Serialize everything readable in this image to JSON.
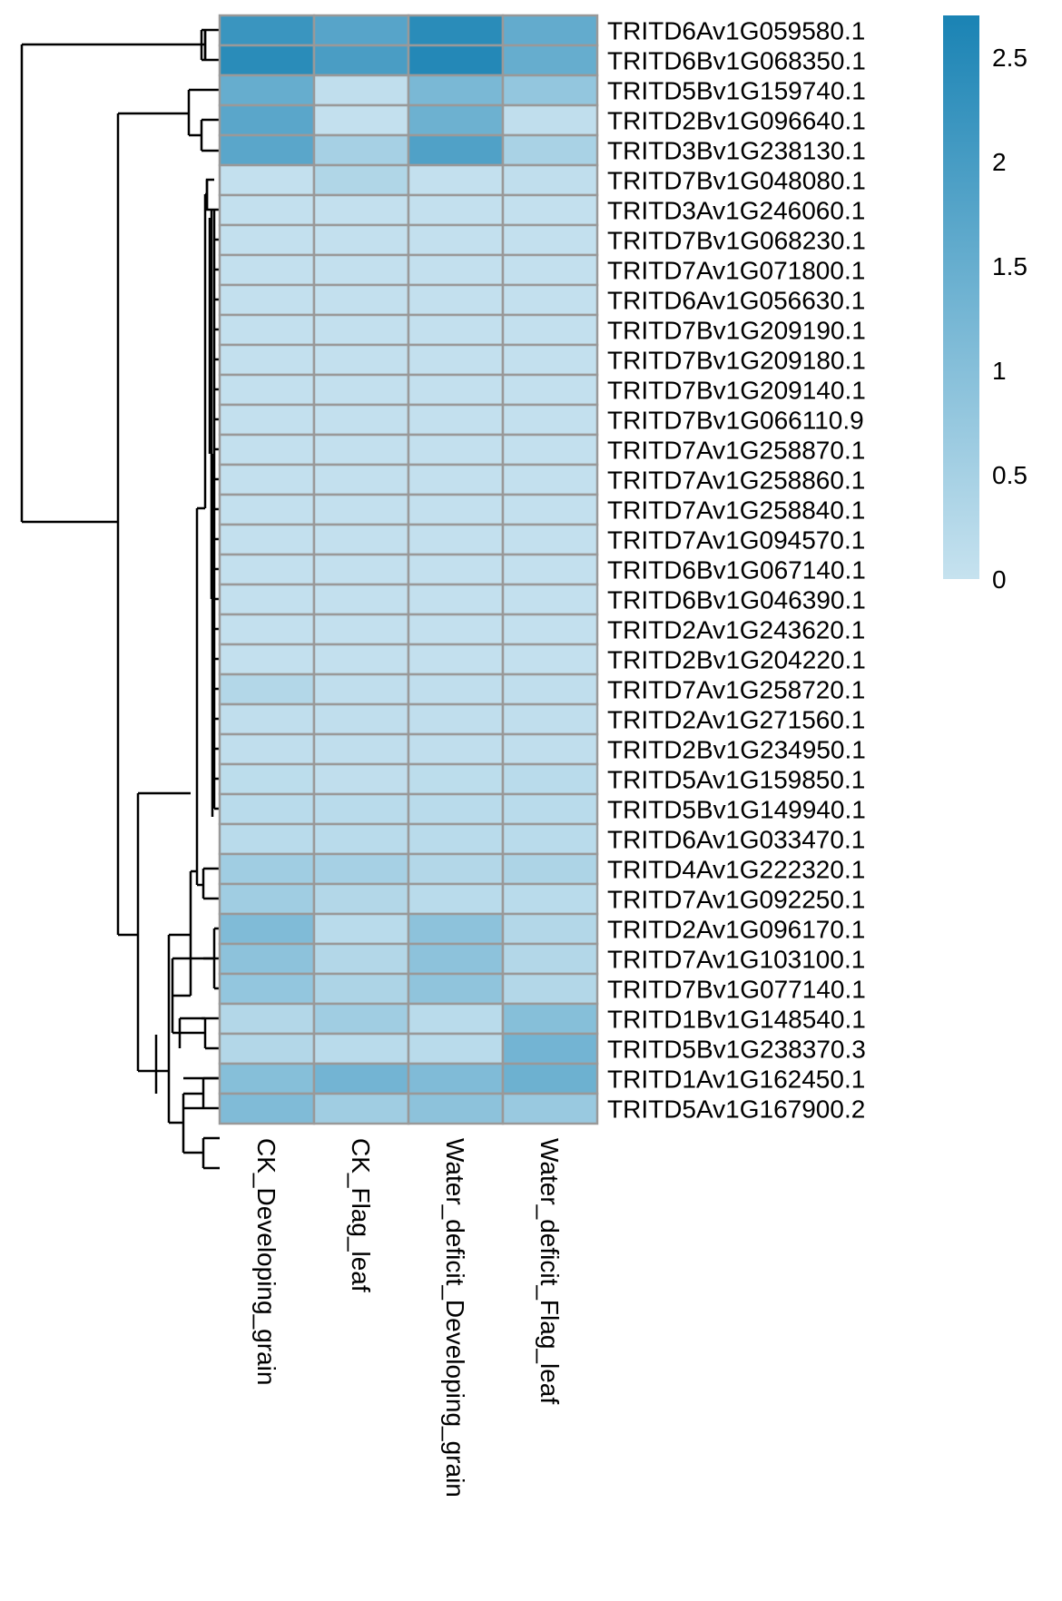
{
  "chart_data": {
    "type": "heatmap",
    "title": "",
    "columns": [
      "CK_Developing_grain",
      "CK_Flag_leaf",
      "Water_deficit_Developing_grain",
      "Water_deficit_Flag_leaf"
    ],
    "rows": [
      "TRITD6Av1G059580.1",
      "TRITD6Bv1G068350.1",
      "TRITD5Bv1G159740.1",
      "TRITD2Bv1G096640.1",
      "TRITD3Bv1G238130.1",
      "TRITD7Bv1G048080.1",
      "TRITD3Av1G246060.1",
      "TRITD7Bv1G068230.1",
      "TRITD7Av1G071800.1",
      "TRITD6Av1G056630.1",
      "TRITD7Bv1G209190.1",
      "TRITD7Bv1G209180.1",
      "TRITD7Bv1G209140.1",
      "TRITD7Bv1G066110.9",
      "TRITD7Av1G258870.1",
      "TRITD7Av1G258860.1",
      "TRITD7Av1G258840.1",
      "TRITD7Av1G094570.1",
      "TRITD6Bv1G067140.1",
      "TRITD6Bv1G046390.1",
      "TRITD2Av1G243620.1",
      "TRITD2Bv1G204220.1",
      "TRITD7Av1G258720.1",
      "TRITD2Av1G271560.1",
      "TRITD2Bv1G234950.1",
      "TRITD5Av1G159850.1",
      "TRITD5Bv1G149940.1",
      "TRITD6Av1G033470.1",
      "TRITD4Av1G222320.1",
      "TRITD7Av1G092250.1",
      "TRITD2Av1G096170.1",
      "TRITD7Av1G103100.1",
      "TRITD7Bv1G077140.1",
      "TRITD1Bv1G148540.1",
      "TRITD5Bv1G238370.3",
      "TRITD1Av1G162450.1",
      "TRITD5Av1G167900.2"
    ],
    "values": [
      [
        2.2,
        1.75,
        2.45,
        1.55
      ],
      [
        2.45,
        1.95,
        2.55,
        1.5
      ],
      [
        1.5,
        0.1,
        1.2,
        0.8
      ],
      [
        1.7,
        0.05,
        1.4,
        0.1
      ],
      [
        1.7,
        0.5,
        1.85,
        0.45
      ],
      [
        0.05,
        0.35,
        0.05,
        0.1
      ],
      [
        0.05,
        0.05,
        0.05,
        0.05
      ],
      [
        0.05,
        0.05,
        0.05,
        0.05
      ],
      [
        0.05,
        0.05,
        0.05,
        0.05
      ],
      [
        0.05,
        0.05,
        0.05,
        0.05
      ],
      [
        0.05,
        0.05,
        0.05,
        0.05
      ],
      [
        0.05,
        0.05,
        0.05,
        0.05
      ],
      [
        0.05,
        0.05,
        0.05,
        0.05
      ],
      [
        0.05,
        0.05,
        0.05,
        0.05
      ],
      [
        0.05,
        0.05,
        0.05,
        0.05
      ],
      [
        0.05,
        0.05,
        0.05,
        0.05
      ],
      [
        0.05,
        0.05,
        0.05,
        0.05
      ],
      [
        0.05,
        0.05,
        0.05,
        0.05
      ],
      [
        0.05,
        0.05,
        0.05,
        0.05
      ],
      [
        0.05,
        0.05,
        0.05,
        0.05
      ],
      [
        0.05,
        0.05,
        0.05,
        0.05
      ],
      [
        0.05,
        0.05,
        0.05,
        0.05
      ],
      [
        0.3,
        0.1,
        0.1,
        0.1
      ],
      [
        0.1,
        0.1,
        0.1,
        0.1
      ],
      [
        0.1,
        0.1,
        0.1,
        0.1
      ],
      [
        0.15,
        0.1,
        0.15,
        0.2
      ],
      [
        0.2,
        0.2,
        0.2,
        0.2
      ],
      [
        0.2,
        0.2,
        0.2,
        0.2
      ],
      [
        0.6,
        0.5,
        0.3,
        0.4
      ],
      [
        0.6,
        0.3,
        0.2,
        0.2
      ],
      [
        1.1,
        0.2,
        0.9,
        0.3
      ],
      [
        0.9,
        0.3,
        0.9,
        0.3
      ],
      [
        0.8,
        0.4,
        0.85,
        0.3
      ],
      [
        0.3,
        0.6,
        0.2,
        1.0
      ],
      [
        0.3,
        0.2,
        0.2,
        1.3
      ],
      [
        1.0,
        1.3,
        1.1,
        1.4
      ],
      [
        1.1,
        0.6,
        0.9,
        0.7
      ]
    ],
    "color_scale": {
      "min": 0,
      "max": 2.7,
      "low_color": "#c6e2ef",
      "high_color": "#1a83b4",
      "ticks": [
        0,
        0.5,
        1,
        1.5,
        2,
        2.5
      ],
      "tick_labels": [
        "0",
        "0.5",
        "1",
        "1.5",
        "2",
        "2.5"
      ]
    },
    "legend": "right",
    "row_dendrogram": true,
    "cell_border_color": "#999999"
  }
}
